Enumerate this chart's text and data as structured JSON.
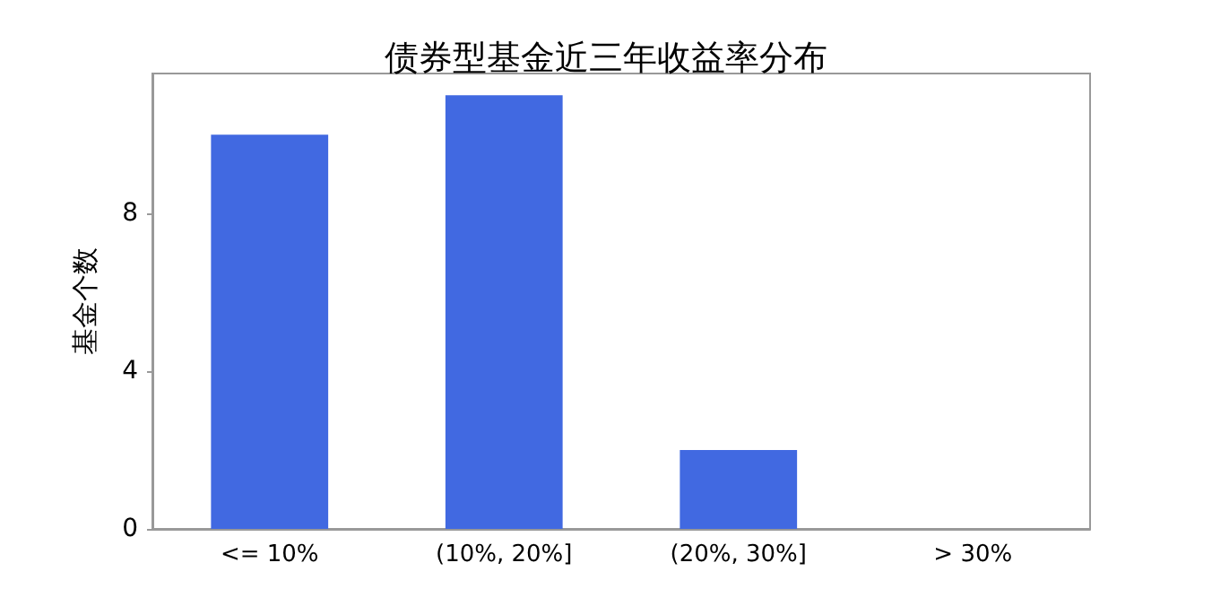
{
  "chart_data": {
    "type": "bar",
    "title": "债券型基金近三年收益率分布",
    "ylabel": "基金个数",
    "categories": [
      "<= 10%",
      "(10%, 20%]",
      "(20%, 30%]",
      "> 30%"
    ],
    "values": [
      10,
      11,
      2,
      0
    ],
    "color": "#4169e1",
    "ylim": [
      0,
      11.55
    ],
    "yticks": [
      0,
      4,
      8
    ],
    "grid": false
  }
}
